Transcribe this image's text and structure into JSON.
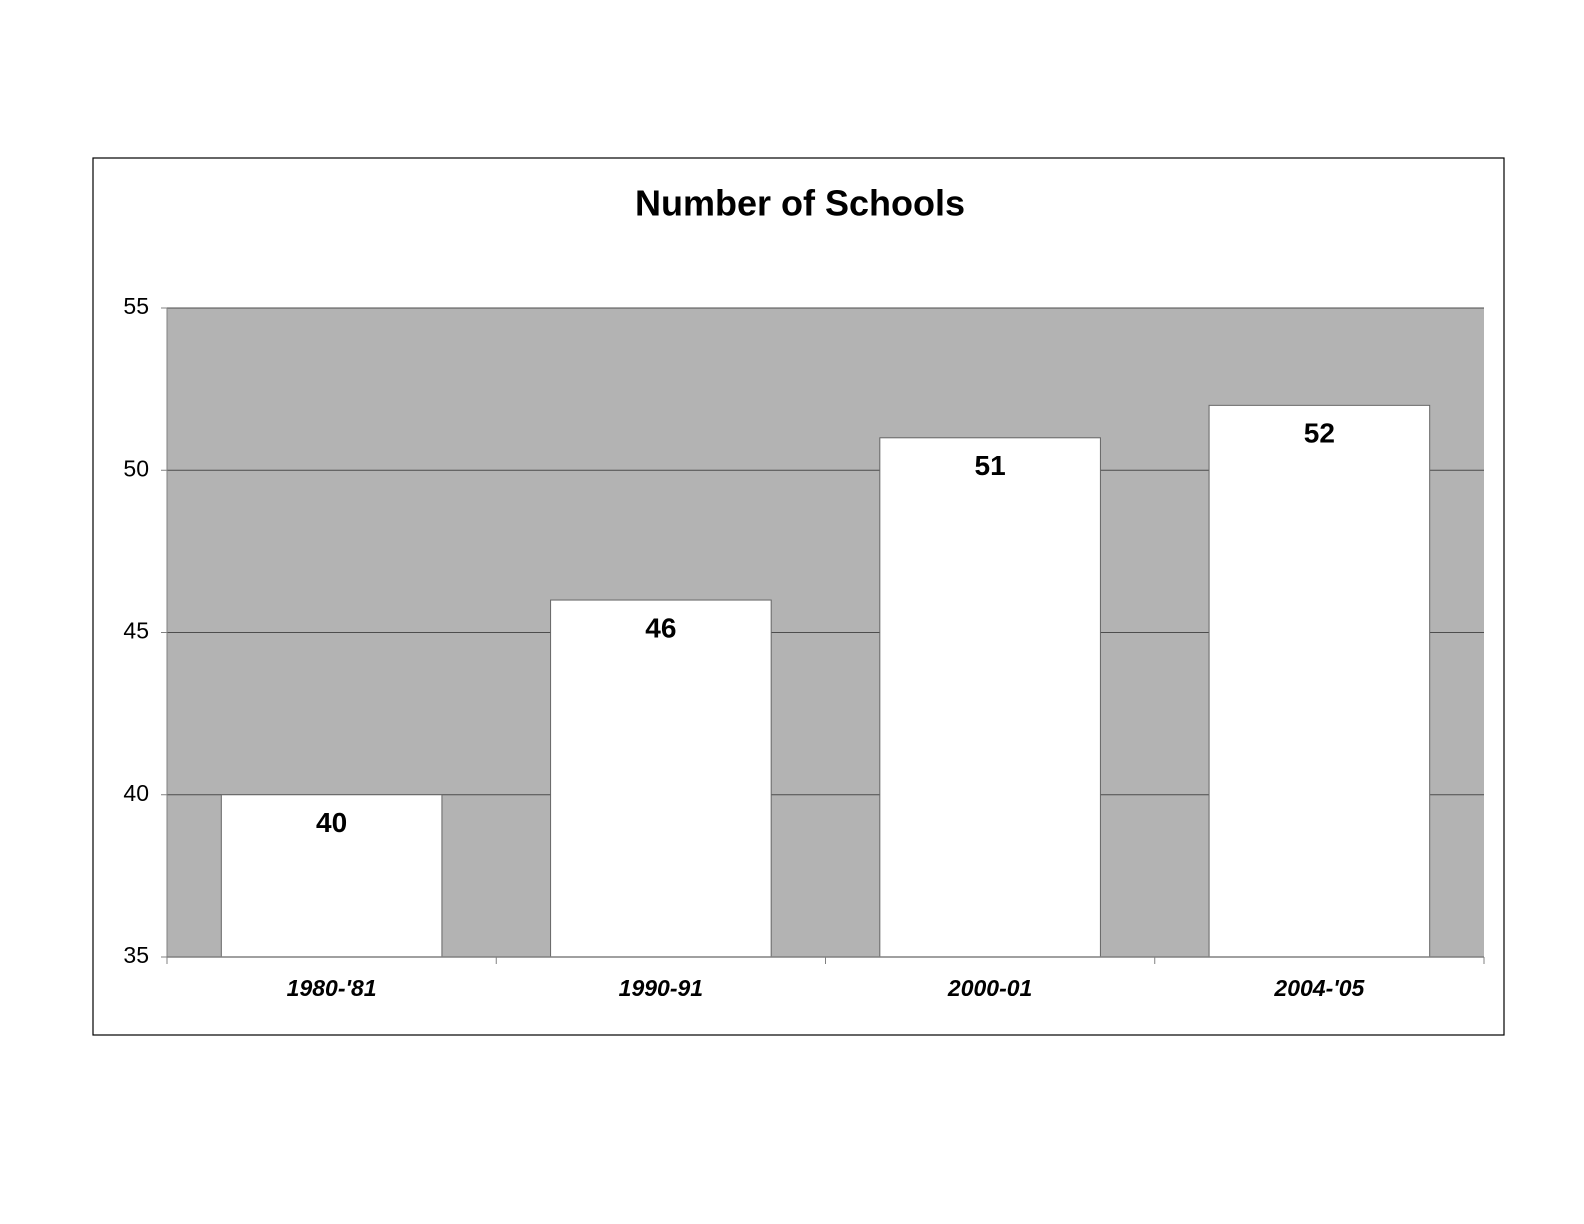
{
  "chart_data": {
    "type": "bar",
    "title": "Number of Schools",
    "categories": [
      "1980-'81",
      "1990-91",
      "2000-01",
      "2004-'05"
    ],
    "values": [
      40,
      46,
      51,
      52
    ],
    "color": "#ffffff",
    "ylim": [
      35,
      55
    ],
    "yticks": [
      35,
      40,
      45,
      50,
      55
    ],
    "grid": true
  }
}
